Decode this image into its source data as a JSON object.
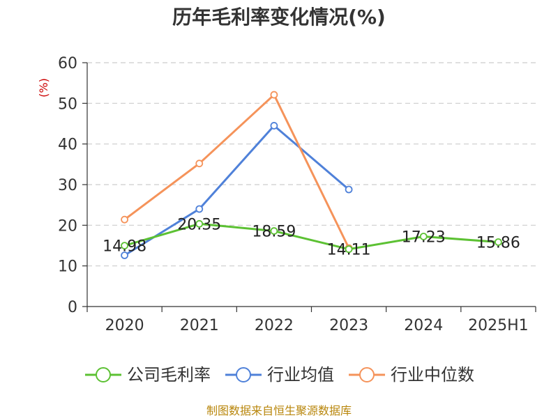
{
  "chart_data": {
    "type": "line",
    "title": "历年毛利率变化情况(%)",
    "ylabel": "(%)",
    "categories": [
      "2020",
      "2021",
      "2022",
      "2023",
      "2024",
      "2025H1"
    ],
    "ylim": [
      0,
      60
    ],
    "yticks": [
      0,
      10,
      20,
      30,
      40,
      50,
      60
    ],
    "grid": true,
    "legend_position": "bottom",
    "series": [
      {
        "name": "公司毛利率",
        "color": "#5cc133",
        "values": [
          14.98,
          20.35,
          18.59,
          14.11,
          17.23,
          15.86
        ],
        "labels": [
          "14.98",
          "20.35",
          "18.59",
          "14.11",
          "17.23",
          "15.86"
        ]
      },
      {
        "name": "行业均值",
        "color": "#4f81d9",
        "values": [
          12.6,
          24.0,
          44.5,
          28.8,
          null,
          null
        ]
      },
      {
        "name": "行业中位数",
        "color": "#f5935a",
        "values": [
          21.4,
          35.2,
          52.1,
          14.4,
          null,
          null
        ]
      }
    ]
  },
  "source": "制图数据来自恒生聚源数据库"
}
